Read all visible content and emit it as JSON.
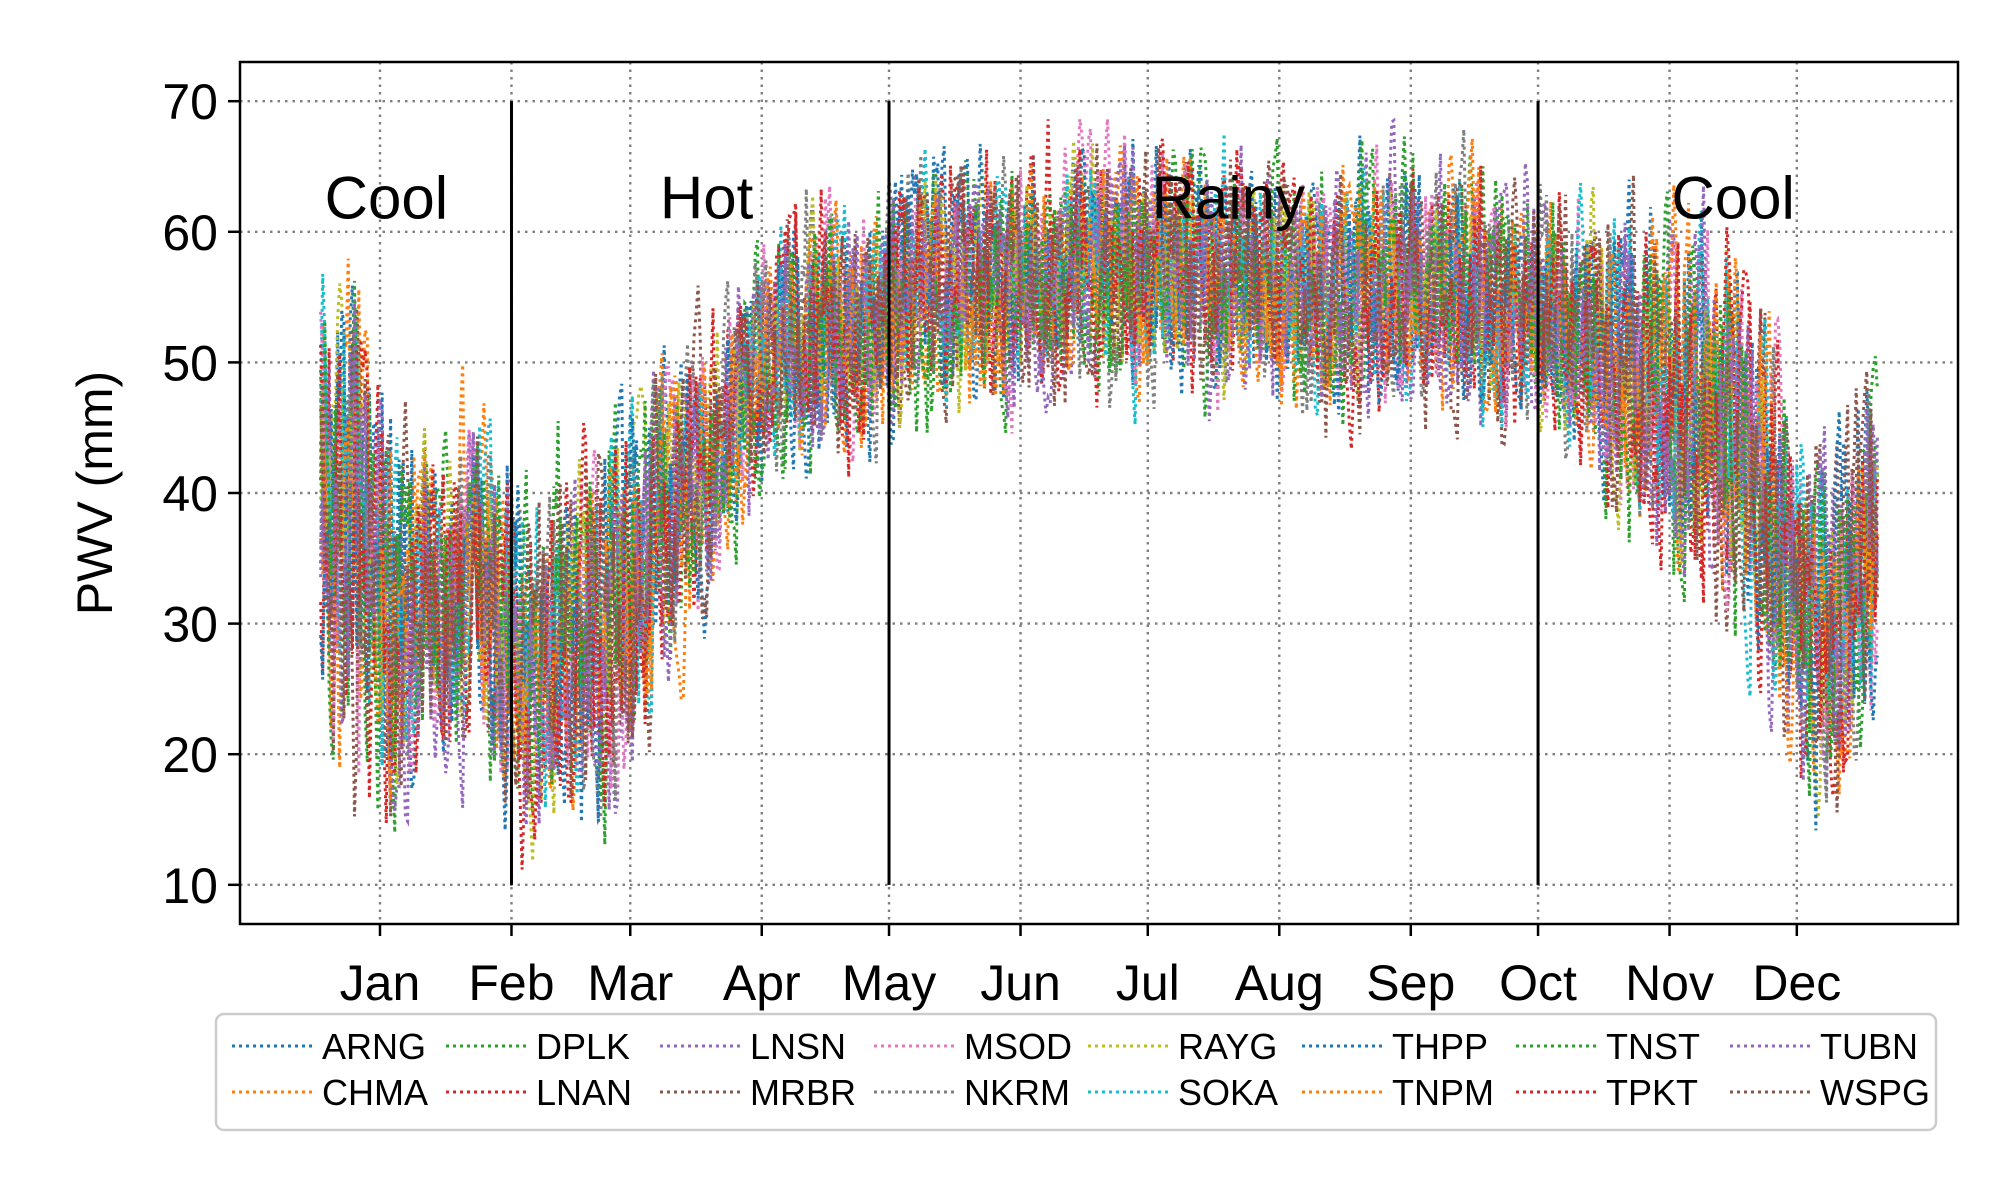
{
  "chart_data": {
    "type": "line",
    "title": "",
    "xlabel": "",
    "ylabel": "PWV (mm)",
    "ylim": [
      7,
      73
    ],
    "xlim": [
      -33,
      372
    ],
    "y_ticks": [
      10,
      20,
      30,
      40,
      50,
      60,
      70
    ],
    "x_ticks": [
      {
        "label": "Jan",
        "day": 0
      },
      {
        "label": "Feb",
        "day": 31
      },
      {
        "label": "Mar",
        "day": 59
      },
      {
        "label": "Apr",
        "day": 90
      },
      {
        "label": "May",
        "day": 120
      },
      {
        "label": "Jun",
        "day": 151
      },
      {
        "label": "Jul",
        "day": 181
      },
      {
        "label": "Aug",
        "day": 212
      },
      {
        "label": "Sep",
        "day": 243
      },
      {
        "label": "Oct",
        "day": 273
      },
      {
        "label": "Nov",
        "day": 304
      },
      {
        "label": "Dec",
        "day": 334
      }
    ],
    "grid": true,
    "season_boundaries": [
      31,
      120,
      273
    ],
    "season_labels": [
      {
        "text": "Cool",
        "day": 1.5,
        "y": 61
      },
      {
        "text": "Hot",
        "day": 77,
        "y": 61
      },
      {
        "text": "Rainy",
        "day": 200,
        "y": 61
      },
      {
        "text": "Cool",
        "day": 319,
        "y": 61
      }
    ],
    "legend_position": "bottom",
    "seasonal_envelope": {
      "day": [
        -14,
        -5,
        5,
        15,
        25,
        35,
        45,
        55,
        65,
        75,
        85,
        95,
        105,
        115,
        125,
        135,
        145,
        155,
        165,
        175,
        185,
        195,
        205,
        215,
        225,
        235,
        245,
        255,
        265,
        275,
        285,
        295,
        305,
        315,
        325,
        335,
        345,
        353
      ],
      "mean": [
        40,
        36,
        30,
        32,
        33,
        27,
        29,
        31,
        37,
        42,
        47,
        52,
        53,
        52,
        56,
        56,
        55,
        56,
        57,
        57,
        57,
        57,
        56,
        55,
        55,
        56,
        56,
        56,
        54,
        55,
        52,
        50,
        48,
        46,
        41,
        30,
        30,
        38
      ],
      "amplitude": [
        14,
        15,
        11,
        9,
        11,
        10,
        10,
        12,
        10,
        8,
        7,
        7,
        8,
        7,
        7,
        7,
        7,
        7,
        7,
        7,
        7,
        7,
        7,
        7,
        7,
        7,
        7,
        7,
        7,
        7,
        8,
        9,
        10,
        11,
        11,
        11,
        10,
        9
      ]
    },
    "series": [
      {
        "name": "ARNG",
        "color": "#1f77b4"
      },
      {
        "name": "CHMA",
        "color": "#ff7f0e"
      },
      {
        "name": "DPLK",
        "color": "#2ca02c"
      },
      {
        "name": "LNAN",
        "color": "#d62728"
      },
      {
        "name": "LNSN",
        "color": "#9467bd"
      },
      {
        "name": "MRBR",
        "color": "#8c564b"
      },
      {
        "name": "MSOD",
        "color": "#e377c2"
      },
      {
        "name": "NKRM",
        "color": "#7f7f7f"
      },
      {
        "name": "RAYG",
        "color": "#bcbd22"
      },
      {
        "name": "SOKA",
        "color": "#17becf"
      },
      {
        "name": "THPP",
        "color": "#1f77b4"
      },
      {
        "name": "TNPM",
        "color": "#ff7f0e"
      },
      {
        "name": "TNST",
        "color": "#2ca02c"
      },
      {
        "name": "TPKT",
        "color": "#d62728"
      },
      {
        "name": "TUBN",
        "color": "#9467bd"
      },
      {
        "name": "WSPG",
        "color": "#8c564b"
      }
    ]
  }
}
